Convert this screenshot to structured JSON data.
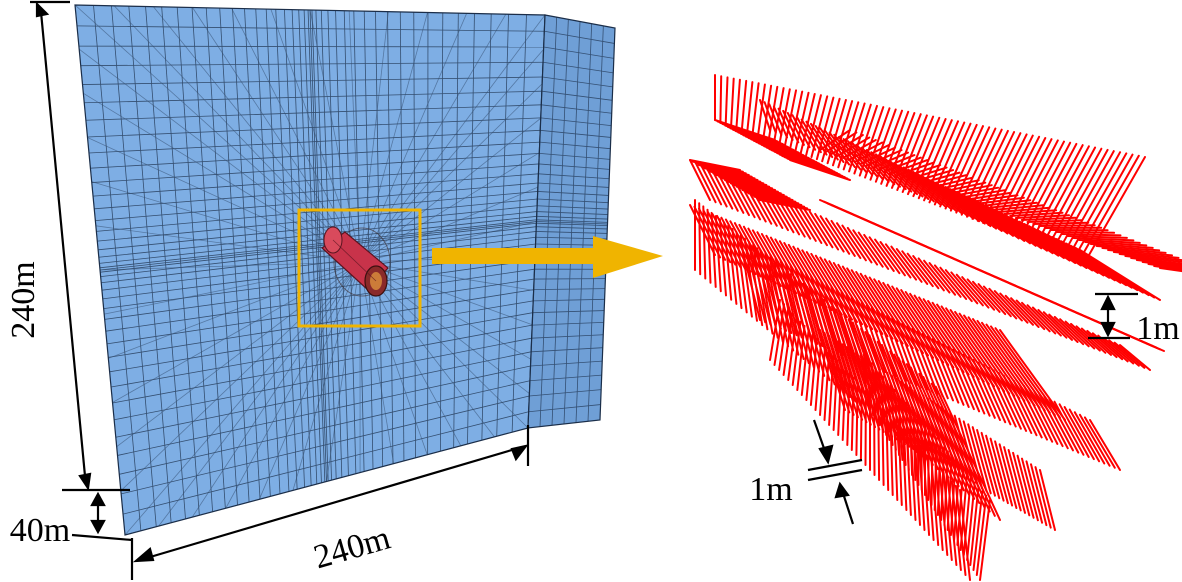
{
  "labels": {
    "height": "240m",
    "thickness": "40m",
    "width": "240m",
    "spacing_top": "1m",
    "spacing_bottom": "1m"
  },
  "colors": {
    "mesh_fill": "#7eaee4",
    "mesh_side": "#6f9fd6",
    "mesh_line": "#1c2f4a",
    "tunnel": "#c8334a",
    "highlight_box": "#f0b400",
    "arrow": "#f0b400",
    "bolts": "#ff0000"
  },
  "icons": {
    "zoom_arrow": "arrow-right-icon"
  }
}
